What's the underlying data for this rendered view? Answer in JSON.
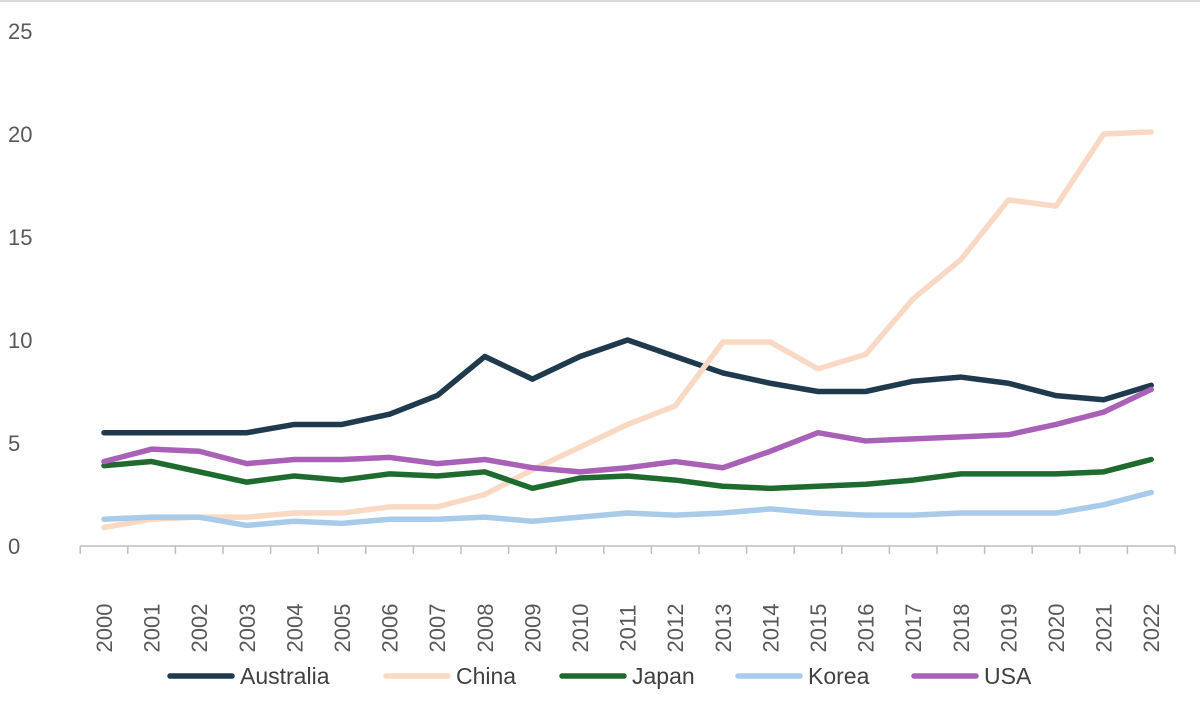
{
  "chart_data": {
    "type": "line",
    "title": "",
    "xlabel": "",
    "ylabel": "",
    "ylim": [
      0,
      25
    ],
    "yticks": [
      0,
      5,
      10,
      15,
      20,
      25
    ],
    "grid": false,
    "legend_position": "bottom",
    "categories": [
      "2000",
      "2001",
      "2002",
      "2003",
      "2004",
      "2005",
      "2006",
      "2007",
      "2008",
      "2009",
      "2010",
      "2011",
      "2012",
      "2013",
      "2014",
      "2015",
      "2016",
      "2017",
      "2018",
      "2019",
      "2020",
      "2021",
      "2022"
    ],
    "series": [
      {
        "name": "Australia",
        "color": "#1f3a4d",
        "values": [
          5.5,
          5.5,
          5.5,
          5.5,
          5.9,
          5.9,
          6.4,
          7.3,
          9.2,
          8.1,
          9.2,
          10.0,
          9.2,
          8.4,
          7.9,
          7.5,
          7.5,
          8.0,
          8.2,
          7.9,
          7.3,
          7.1,
          7.8
        ]
      },
      {
        "name": "China",
        "color": "#fad9c4",
        "values": [
          0.9,
          1.3,
          1.4,
          1.4,
          1.6,
          1.6,
          1.9,
          1.9,
          2.5,
          3.7,
          4.8,
          5.9,
          6.8,
          9.9,
          9.9,
          8.6,
          9.3,
          12.0,
          13.9,
          16.8,
          16.5,
          20.0,
          20.1
        ]
      },
      {
        "name": "Japan",
        "color": "#1f6b2f",
        "values": [
          3.9,
          4.1,
          3.6,
          3.1,
          3.4,
          3.2,
          3.5,
          3.4,
          3.6,
          2.8,
          3.3,
          3.4,
          3.2,
          2.9,
          2.8,
          2.9,
          3.0,
          3.2,
          3.5,
          3.5,
          3.5,
          3.6,
          4.2
        ]
      },
      {
        "name": "Korea",
        "color": "#a9cbea",
        "values": [
          1.3,
          1.4,
          1.4,
          1.0,
          1.2,
          1.1,
          1.3,
          1.3,
          1.4,
          1.2,
          1.4,
          1.6,
          1.5,
          1.6,
          1.8,
          1.6,
          1.5,
          1.5,
          1.6,
          1.6,
          1.6,
          2.0,
          2.6
        ]
      },
      {
        "name": "USA",
        "color": "#a861b6",
        "values": [
          4.1,
          4.7,
          4.6,
          4.0,
          4.2,
          4.2,
          4.3,
          4.0,
          4.2,
          3.8,
          3.6,
          3.8,
          4.1,
          3.8,
          4.6,
          5.5,
          5.1,
          5.2,
          5.3,
          5.4,
          5.9,
          6.5,
          7.6
        ]
      }
    ]
  }
}
